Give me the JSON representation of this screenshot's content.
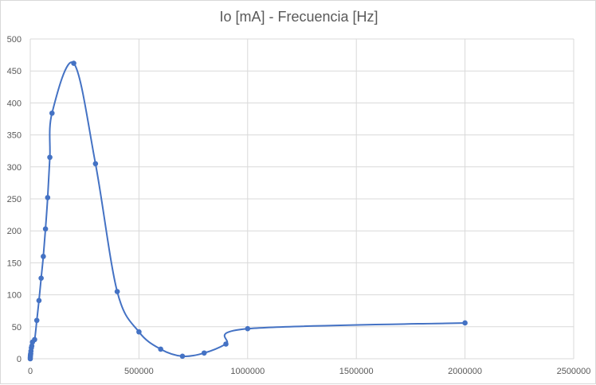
{
  "chart_data": {
    "type": "scatter",
    "title": "Io [mA] -  Frecuencia [Hz]",
    "xlabel": "",
    "ylabel": "",
    "xlim": [
      0,
      2500000
    ],
    "ylim": [
      0,
      500
    ],
    "x_ticks": [
      0,
      500000,
      1000000,
      1500000,
      2000000,
      2500000
    ],
    "x_tick_labels": [
      "0",
      "500000",
      "1000000",
      "1500000",
      "2000000",
      "2500000"
    ],
    "y_ticks": [
      0,
      50,
      100,
      150,
      200,
      250,
      300,
      350,
      400,
      450,
      500
    ],
    "y_tick_labels": [
      "0",
      "50",
      "100",
      "150",
      "200",
      "250",
      "300",
      "350",
      "400",
      "450",
      "500"
    ],
    "grid": true,
    "smooth_line": true,
    "series_color": "#4472c4",
    "series": [
      {
        "x": [
          0,
          100,
          500,
          1000,
          2000,
          3000,
          5000,
          7000,
          10000,
          20000,
          30000,
          40000,
          50000,
          60000,
          70000,
          80000,
          90000,
          100000,
          200000,
          300000,
          400000,
          500000,
          600000,
          700000,
          800000,
          900000,
          1000000,
          2000000
        ],
        "y": [
          0,
          2,
          4,
          6,
          8,
          12,
          17,
          20,
          26,
          30,
          60,
          91,
          126,
          160,
          203,
          252,
          315,
          384,
          462,
          305,
          105,
          42,
          15,
          4,
          9,
          23,
          47,
          56
        ]
      }
    ]
  }
}
